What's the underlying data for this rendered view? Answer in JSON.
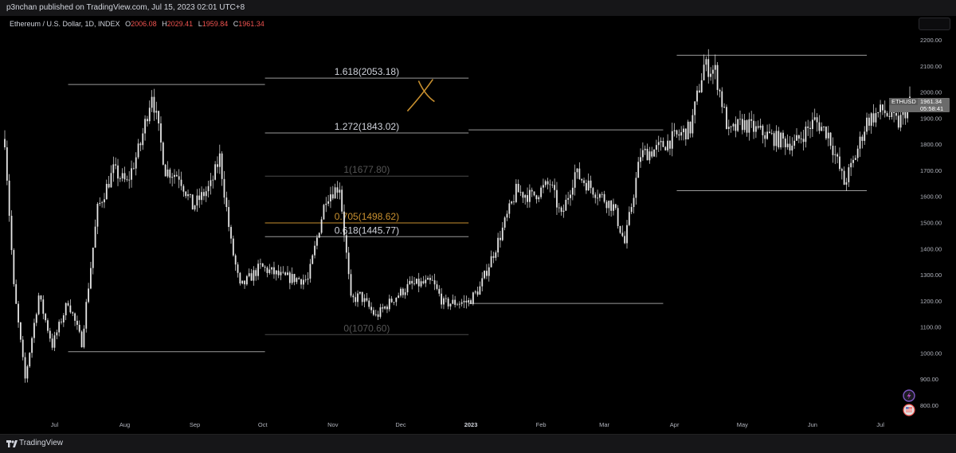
{
  "header": {
    "published_text": "p3nchan published on TradingView.com, Jul 15, 2023 02:01 UTC+8"
  },
  "legend": {
    "symbol": "Ethereum / U.S. Dollar, 1D, INDEX",
    "open_label": "O",
    "open": "2006.08",
    "high_label": "H",
    "high": "2029.41",
    "low_label": "L",
    "low": "1959.84",
    "close_label": "C",
    "close": "1961.34"
  },
  "price_tag": {
    "symbol": "ETHUSD",
    "price": "1961.34",
    "countdown": "05:58:41"
  },
  "footer": {
    "brand": "TradingView"
  },
  "colors": {
    "background": "#000000",
    "candle": "#e6e6e6",
    "line": "#9a9a9a",
    "fib_highlight": "#c8902f",
    "fib_faint": "#4a4a4a",
    "price_tag": "#6b6b6b"
  },
  "icons": [
    "lightning-icon",
    "flag-icon",
    "tradingview-logo-icon"
  ],
  "chart_data": {
    "type": "candlestick",
    "y_axis": {
      "min": 800,
      "max": 2200,
      "ticks": [
        800,
        900,
        1000,
        1100,
        1200,
        1300,
        1400,
        1500,
        1600,
        1700,
        1800,
        1900,
        2000,
        2100,
        2200
      ]
    },
    "x_axis": {
      "start_date": "2022-06-09",
      "end_date": "2023-07-14",
      "tick_labels": [
        "Jul",
        "Aug",
        "Sep",
        "Oct",
        "Nov",
        "Dec",
        "2023",
        "Feb",
        "Mar",
        "Apr",
        "May",
        "Jun",
        "Jul"
      ]
    },
    "price_path": [
      [
        "2022-06-09",
        1820
      ],
      [
        "2022-06-13",
        1250
      ],
      [
        "2022-06-18",
        900
      ],
      [
        "2022-06-24",
        1220
      ],
      [
        "2022-06-30",
        1030
      ],
      [
        "2022-07-07",
        1200
      ],
      [
        "2022-07-13",
        1040
      ],
      [
        "2022-07-20",
        1550
      ],
      [
        "2022-07-27",
        1700
      ],
      [
        "2022-08-02",
        1650
      ],
      [
        "2022-08-08",
        1800
      ],
      [
        "2022-08-13",
        2000
      ],
      [
        "2022-08-19",
        1700
      ],
      [
        "2022-08-25",
        1680
      ],
      [
        "2022-08-31",
        1560
      ],
      [
        "2022-09-08",
        1640
      ],
      [
        "2022-09-12",
        1750
      ],
      [
        "2022-09-17",
        1420
      ],
      [
        "2022-09-21",
        1250
      ],
      [
        "2022-09-30",
        1330
      ],
      [
        "2022-10-10",
        1290
      ],
      [
        "2022-10-21",
        1280
      ],
      [
        "2022-10-29",
        1600
      ],
      [
        "2022-11-04",
        1640
      ],
      [
        "2022-11-09",
        1200
      ],
      [
        "2022-11-13",
        1220
      ],
      [
        "2022-11-20",
        1140
      ],
      [
        "2022-11-28",
        1210
      ],
      [
        "2022-12-05",
        1260
      ],
      [
        "2022-12-15",
        1270
      ],
      [
        "2022-12-20",
        1190
      ],
      [
        "2022-12-31",
        1196
      ],
      [
        "2023-01-05",
        1250
      ],
      [
        "2023-01-14",
        1450
      ],
      [
        "2023-01-21",
        1620
      ],
      [
        "2023-01-28",
        1600
      ],
      [
        "2023-02-05",
        1650
      ],
      [
        "2023-02-10",
        1520
      ],
      [
        "2023-02-16",
        1690
      ],
      [
        "2023-02-25",
        1620
      ],
      [
        "2023-03-05",
        1560
      ],
      [
        "2023-03-10",
        1420
      ],
      [
        "2023-03-17",
        1760
      ],
      [
        "2023-03-24",
        1780
      ],
      [
        "2023-03-31",
        1820
      ],
      [
        "2023-04-08",
        1860
      ],
      [
        "2023-04-14",
        2100
      ],
      [
        "2023-04-19",
        2080
      ],
      [
        "2023-04-25",
        1840
      ],
      [
        "2023-05-01",
        1880
      ],
      [
        "2023-05-08",
        1850
      ],
      [
        "2023-05-16",
        1820
      ],
      [
        "2023-05-24",
        1800
      ],
      [
        "2023-06-02",
        1890
      ],
      [
        "2023-06-08",
        1840
      ],
      [
        "2023-06-15",
        1650
      ],
      [
        "2023-06-19",
        1730
      ],
      [
        "2023-06-25",
        1890
      ],
      [
        "2023-07-02",
        1930
      ],
      [
        "2023-07-09",
        1880
      ],
      [
        "2023-07-14",
        1961
      ]
    ],
    "horizontal_lines": [
      {
        "from": "2022-07-07",
        "to": "2022-10-02",
        "price": 2029
      },
      {
        "from": "2022-07-07",
        "to": "2022-10-02",
        "price": 1005
      },
      {
        "from": "2022-12-31",
        "to": "2023-03-27",
        "price": 1855
      },
      {
        "from": "2022-12-31",
        "to": "2023-03-27",
        "price": 1190
      },
      {
        "from": "2023-04-02",
        "to": "2023-06-25",
        "price": 2141
      },
      {
        "from": "2023-04-02",
        "to": "2023-06-25",
        "price": 1622
      }
    ],
    "fib_levels": [
      {
        "label": "1.618(2053.18)",
        "price": 2053.18,
        "style": "normal"
      },
      {
        "label": "1.272(1843.02)",
        "price": 1843.02,
        "style": "normal"
      },
      {
        "label": "1(1677.80)",
        "price": 1677.8,
        "style": "faint"
      },
      {
        "label": "0.705(1498.62)",
        "price": 1498.62,
        "style": "highlight"
      },
      {
        "label": "0.618(1445.77)",
        "price": 1445.77,
        "style": "normal"
      },
      {
        "label": "0(1070.60)",
        "price": 1070.6,
        "style": "faint"
      }
    ],
    "fib_range": {
      "from": "2022-10-02",
      "to": "2022-12-31"
    },
    "cross_mark": {
      "date": "2022-12-11",
      "price": 2000
    }
  }
}
